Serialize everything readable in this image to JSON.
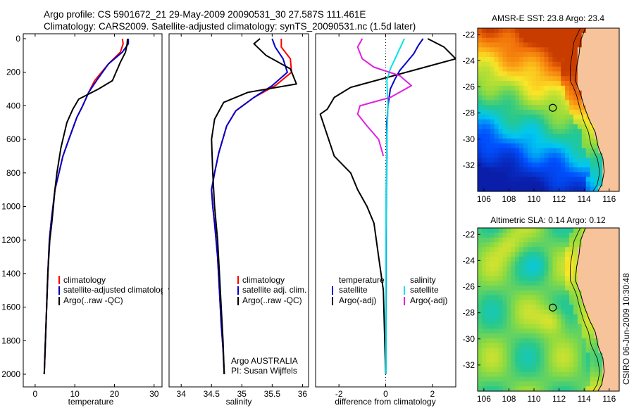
{
  "title_line1": "Argo profile: CS 5901672_21 29-May-2009 20090531_30 27.587S 111.461E",
  "title_line2": "Climatology: CARS2009. Satellite-adjusted climatology: synTS_20090531.nc (1.5d later)",
  "footer_stamp": "CSIRO 06-Jun-2009 10:30:48",
  "colors": {
    "red": "#ff0000",
    "blue": "#0000cc",
    "black": "#000000",
    "cyan": "#00e5e5",
    "magenta": "#e020e0"
  },
  "chart_data": [
    {
      "id": "temperature",
      "type": "line",
      "xlabel": "temperature",
      "xlim": [
        -3,
        32
      ],
      "ylim": [
        2100,
        0
      ],
      "xticks": [
        0,
        10,
        20,
        30
      ],
      "yticks": [
        0,
        200,
        400,
        600,
        800,
        1000,
        1200,
        1400,
        1600,
        1800,
        2000
      ],
      "legend": [
        "climatology",
        "satellite-adjusted climatology",
        "Argo(..raw -QC)"
      ],
      "series": [
        {
          "name": "climatology",
          "color": "red",
          "x": [
            22,
            22.2,
            21.5,
            18.5,
            15,
            13.5,
            12,
            10.5,
            8.5,
            7,
            6,
            5,
            4.5,
            4,
            3.6,
            3.2,
            2.9,
            2.6,
            2.3
          ],
          "y": [
            0,
            30,
            80,
            150,
            250,
            320,
            400,
            470,
            600,
            700,
            800,
            900,
            1000,
            1100,
            1200,
            1400,
            1600,
            1800,
            2000
          ]
        },
        {
          "name": "satellite-adjusted climatology",
          "color": "blue",
          "x": [
            23.5,
            23.5,
            22,
            18.5,
            15.5,
            13.5,
            12,
            10.5,
            8.5,
            7,
            6,
            5,
            4.5,
            4,
            3.6,
            3.2,
            2.9,
            2.6,
            2.3
          ],
          "y": [
            0,
            30,
            80,
            150,
            250,
            320,
            400,
            470,
            600,
            700,
            800,
            900,
            1000,
            1100,
            1200,
            1400,
            1600,
            1800,
            2000
          ]
        },
        {
          "name": "Argo(..raw -QC)",
          "color": "black",
          "x": [
            23.3,
            23.2,
            22.8,
            21.5,
            19.5,
            16,
            11,
            9.5,
            8,
            6.5,
            5.5,
            5,
            4.6,
            4.2,
            3.7,
            3.2,
            2.9,
            2.6,
            2.3
          ],
          "y": [
            0,
            30,
            80,
            140,
            250,
            300,
            360,
            420,
            500,
            650,
            800,
            900,
            1000,
            1100,
            1200,
            1400,
            1600,
            1800,
            2000
          ]
        }
      ]
    },
    {
      "id": "salinity",
      "type": "line",
      "xlabel": "salinity",
      "xlim": [
        33.8,
        36.1
      ],
      "ylim": [
        2100,
        0
      ],
      "xticks": [
        34,
        34.5,
        35,
        35.5,
        36
      ],
      "yticks": [],
      "legend": [
        "climatology",
        "satellite adj. clim.",
        "Argo(..raw -QC)"
      ],
      "annotations": [
        "Argo AUSTRALIA",
        "PI: Susan Wijffels"
      ],
      "series": [
        {
          "name": "climatology",
          "color": "red",
          "x": [
            35.65,
            35.65,
            35.8,
            35.82,
            35.55,
            35.2,
            34.9,
            34.75,
            34.62,
            34.55,
            34.5,
            34.52,
            34.55,
            34.6,
            34.63,
            34.66,
            34.69,
            34.71
          ],
          "y": [
            0,
            50,
            120,
            200,
            280,
            350,
            430,
            520,
            680,
            800,
            900,
            1000,
            1100,
            1300,
            1500,
            1700,
            1850,
            2000
          ]
        },
        {
          "name": "satellite adj. clim.",
          "color": "blue",
          "x": [
            35.5,
            35.55,
            35.68,
            35.75,
            35.5,
            35.2,
            34.9,
            34.75,
            34.62,
            34.55,
            34.5,
            34.52,
            34.55,
            34.6,
            34.63,
            34.66,
            34.69,
            34.71
          ],
          "y": [
            0,
            50,
            120,
            200,
            280,
            350,
            430,
            520,
            680,
            800,
            900,
            1000,
            1100,
            1300,
            1500,
            1700,
            1850,
            2000
          ]
        },
        {
          "name": "Argo(..raw -QC)",
          "color": "black",
          "x": [
            35.3,
            35.2,
            35.4,
            35.8,
            35.9,
            35.1,
            34.7,
            34.55,
            34.5,
            34.52,
            34.55,
            34.6,
            34.63,
            34.66,
            34.69,
            34.71
          ],
          "y": [
            0,
            30,
            100,
            180,
            270,
            320,
            380,
            480,
            600,
            800,
            1000,
            1200,
            1400,
            1600,
            1800,
            2000
          ]
        }
      ]
    },
    {
      "id": "difference",
      "type": "line",
      "xlabel": "difference from climatology",
      "xlim": [
        -3,
        3
      ],
      "ylim": [
        2100,
        0
      ],
      "xticks": [
        -2,
        0,
        2
      ],
      "yticks": [],
      "legend": [
        "temperature",
        "satellite",
        "Argo(-adj)",
        "salinity",
        "satellite",
        "Argo(-adj)"
      ],
      "series": [
        {
          "name": "temperature satellite",
          "color": "blue",
          "x": [
            1.6,
            1.4,
            1.2,
            0.9,
            0.6,
            0.4,
            0.2,
            0.1,
            0.05,
            0.05,
            0.03,
            0.02,
            0.02,
            0.02,
            0.01,
            0.01
          ],
          "y": [
            0,
            40,
            90,
            140,
            190,
            240,
            300,
            400,
            500,
            700,
            900,
            1100,
            1300,
            1500,
            1700,
            2000
          ]
        },
        {
          "name": "temperature Argo(-adj)",
          "color": "black",
          "x": [
            1.8,
            2.5,
            3.0,
            -1.5,
            -2.2,
            -2.5,
            -2.8,
            -2.2,
            -1.5,
            -1.2,
            -0.8,
            -0.5,
            -0.3,
            -0.1,
            0
          ],
          "y": [
            0,
            50,
            120,
            290,
            350,
            420,
            450,
            700,
            800,
            900,
            1000,
            1100,
            1300,
            1500,
            2000
          ]
        },
        {
          "name": "salinity satellite",
          "color": "cyan",
          "x": [
            0.8,
            0.6,
            0.4,
            0.2,
            0.05,
            0.1,
            0.05,
            0.02,
            0.01,
            0.01,
            0.01
          ],
          "y": [
            0,
            60,
            120,
            180,
            250,
            400,
            600,
            900,
            1200,
            1600,
            2000
          ]
        },
        {
          "name": "salinity Argo(-adj)",
          "color": "magenta",
          "x": [
            -1.0,
            -1.2,
            -1.0,
            -0.5,
            0.6,
            1.1,
            0.2,
            -1.1,
            -1.2,
            -0.8,
            -0.3,
            -0.1
          ],
          "y": [
            0,
            50,
            120,
            170,
            220,
            280,
            350,
            400,
            450,
            520,
            600,
            700
          ]
        }
      ]
    },
    {
      "id": "sst_map",
      "type": "heatmap",
      "title": "AMSR-E SST: 23.8 Argo: 23.4",
      "xlim": [
        105.5,
        116.8
      ],
      "ylim": [
        -34,
        -21.5
      ],
      "xticks": [
        106,
        108,
        110,
        112,
        114,
        116
      ],
      "yticks": [
        -22,
        -24,
        -26,
        -28,
        -30,
        -32
      ],
      "argo_position": [
        111.5,
        -27.6
      ]
    },
    {
      "id": "sla_map",
      "type": "heatmap",
      "title": "Altimetric SLA: 0.14 Argo: 0.12",
      "xlim": [
        105.5,
        116.8
      ],
      "ylim": [
        -34,
        -21.5
      ],
      "xticks": [
        106,
        108,
        110,
        112,
        114,
        116
      ],
      "yticks": [
        -22,
        -24,
        -26,
        -28,
        -30,
        -32
      ],
      "argo_position": [
        111.5,
        -27.6
      ]
    }
  ]
}
